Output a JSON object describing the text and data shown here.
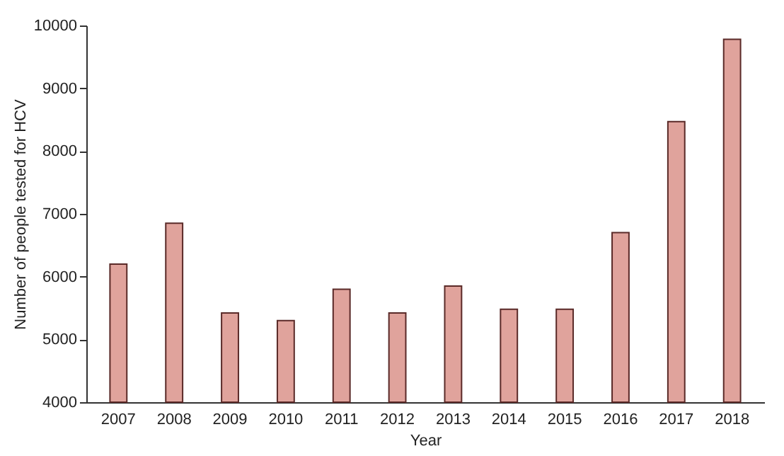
{
  "chart_data": {
    "type": "bar",
    "xlabel": "Year",
    "ylabel": "Number of people tested for HCV",
    "categories": [
      "2007",
      "2008",
      "2009",
      "2010",
      "2011",
      "2012",
      "2013",
      "2014",
      "2015",
      "2016",
      "2017",
      "2018"
    ],
    "values": [
      6200,
      6850,
      5420,
      5300,
      5800,
      5420,
      5850,
      5480,
      5480,
      6700,
      8470,
      9780
    ],
    "color": "#e0a39c",
    "ylim": [
      4000,
      10000
    ],
    "yticks": [
      4000,
      5000,
      6000,
      7000,
      8000,
      9000,
      10000
    ],
    "grid": false
  }
}
